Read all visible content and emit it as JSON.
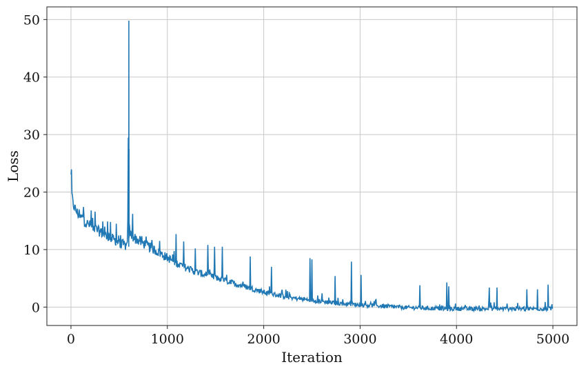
{
  "chart_data": {
    "type": "line",
    "title": "",
    "xlabel": "Iteration",
    "ylabel": "Loss",
    "xlim": [
      -250,
      5250
    ],
    "ylim": [
      -3.2,
      52.2
    ],
    "xticks": [
      0,
      1000,
      2000,
      3000,
      4000,
      5000
    ],
    "xtick_labels": [
      "0",
      "1000",
      "2000",
      "3000",
      "4000",
      "5000"
    ],
    "yticks": [
      0,
      10,
      20,
      30,
      40,
      50
    ],
    "ytick_labels": [
      "0",
      "10",
      "20",
      "30",
      "40",
      "50"
    ],
    "grid": true,
    "line_color": "#1f77b4",
    "series": [
      {
        "x": [
          0,
          5,
          10,
          20,
          40,
          60,
          80,
          100,
          120,
          140,
          160,
          180,
          200,
          220,
          240,
          260,
          280,
          300,
          350,
          400,
          450,
          500,
          550,
          590,
          600,
          605,
          610,
          620,
          640,
          660,
          700,
          800,
          900,
          1000,
          1100,
          1200,
          1300,
          1400,
          1500,
          1600,
          1700,
          1800,
          1900,
          2000,
          2100,
          2200,
          2300,
          2400,
          2500,
          2600,
          2700,
          2800,
          2900,
          3000,
          3100,
          3200,
          3300,
          3400,
          3500,
          3600,
          3700,
          3800,
          3900,
          4000,
          4100,
          4200,
          4300,
          4400,
          4500,
          4600,
          4700,
          4800,
          4900,
          5000
        ],
        "y": [
          22.8,
          21.5,
          19.5,
          18.0,
          17.2,
          16.6,
          16.0,
          15.5,
          15.6,
          15.0,
          14.6,
          14.4,
          14.2,
          14.0,
          13.7,
          13.5,
          13.3,
          13.1,
          12.6,
          12.2,
          11.7,
          11.2,
          10.8,
          10.5,
          49.8,
          14.5,
          13.0,
          12.6,
          12.3,
          12.0,
          11.6,
          10.6,
          9.6,
          8.6,
          7.6,
          6.8,
          6.1,
          5.6,
          5.1,
          4.6,
          4.1,
          3.6,
          3.1,
          2.6,
          2.2,
          1.9,
          1.6,
          1.4,
          1.2,
          1.0,
          0.8,
          0.6,
          0.5,
          0.4,
          0.3,
          0.2,
          0.1,
          0.0,
          -0.1,
          -0.1,
          -0.2,
          -0.2,
          -0.3,
          -0.3,
          -0.3,
          -0.3,
          -0.3,
          -0.3,
          -0.3,
          -0.3,
          -0.3,
          -0.3,
          -0.3,
          -0.3
        ],
        "spikes": [
          {
            "x": 130,
            "y": 17.4
          },
          {
            "x": 210,
            "y": 16.8
          },
          {
            "x": 250,
            "y": 16.6
          },
          {
            "x": 330,
            "y": 14.9
          },
          {
            "x": 380,
            "y": 14.9
          },
          {
            "x": 410,
            "y": 14.8
          },
          {
            "x": 470,
            "y": 14.5
          },
          {
            "x": 590,
            "y": 15.2
          },
          {
            "x": 640,
            "y": 16.2
          },
          {
            "x": 920,
            "y": 11.5
          },
          {
            "x": 1090,
            "y": 12.7
          },
          {
            "x": 1170,
            "y": 11.4
          },
          {
            "x": 1290,
            "y": 10.2
          },
          {
            "x": 1420,
            "y": 10.8
          },
          {
            "x": 1490,
            "y": 10.5
          },
          {
            "x": 1570,
            "y": 10.5
          },
          {
            "x": 1860,
            "y": 8.8
          },
          {
            "x": 2080,
            "y": 7.0
          },
          {
            "x": 2480,
            "y": 8.5
          },
          {
            "x": 2500,
            "y": 8.3
          },
          {
            "x": 2740,
            "y": 5.4
          },
          {
            "x": 2910,
            "y": 7.9
          },
          {
            "x": 3010,
            "y": 5.6
          },
          {
            "x": 3620,
            "y": 3.8
          },
          {
            "x": 3900,
            "y": 4.3
          },
          {
            "x": 3920,
            "y": 3.6
          },
          {
            "x": 4340,
            "y": 3.4
          },
          {
            "x": 4420,
            "y": 3.4
          },
          {
            "x": 4730,
            "y": 3.1
          },
          {
            "x": 4840,
            "y": 3.1
          },
          {
            "x": 4950,
            "y": 3.9
          }
        ]
      }
    ]
  }
}
